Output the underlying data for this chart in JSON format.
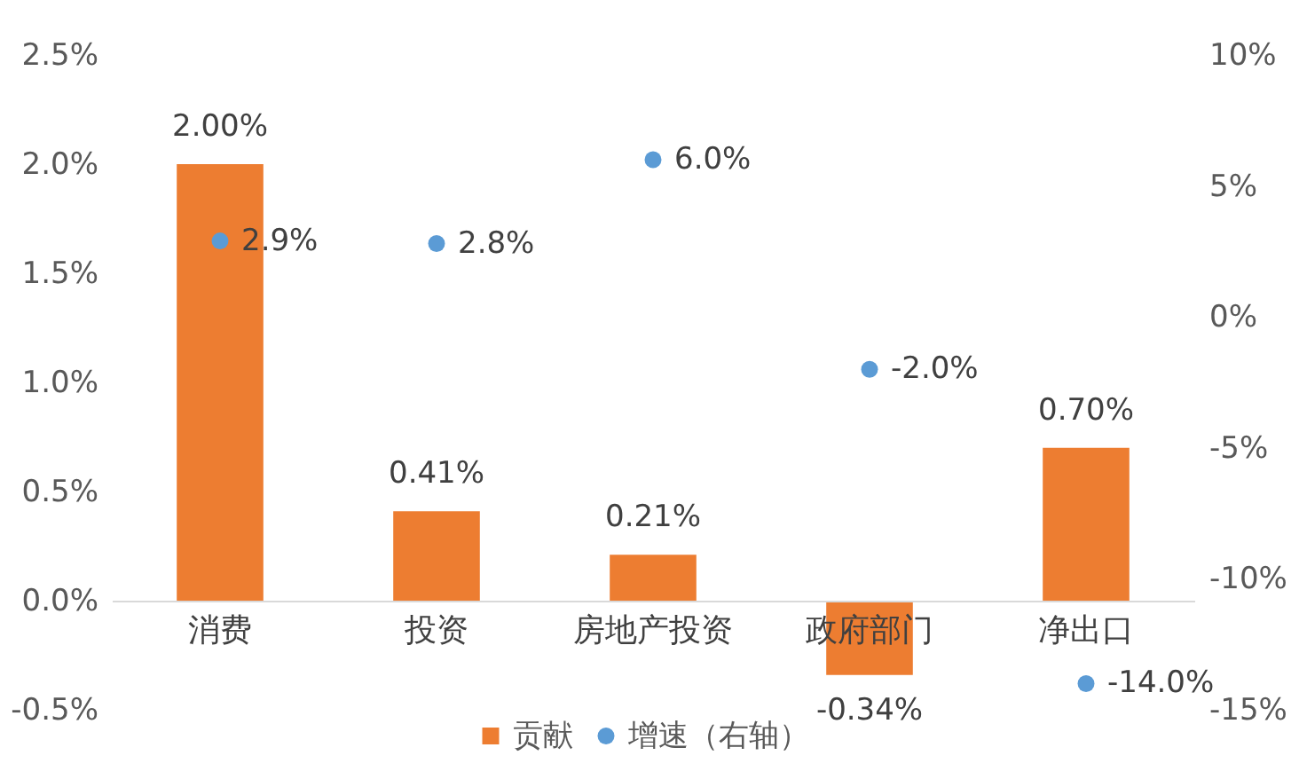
{
  "chart_data": {
    "type": "bar",
    "categories": [
      "消费",
      "投资",
      "房地产投资",
      "政府部门",
      "净出口"
    ],
    "series": [
      {
        "name": "贡献",
        "color": "#ed7d31",
        "values": [
          2.0,
          0.41,
          0.21,
          -0.34,
          0.7
        ],
        "value_labels": [
          "2.00%",
          "0.41%",
          "0.21%",
          "-0.34%",
          "0.70%"
        ]
      },
      {
        "name": "增速（右轴）",
        "type": "scatter",
        "axis": "y2",
        "color": "#5b9bd5",
        "values": [
          2.9,
          2.8,
          6.0,
          -2.0,
          -14.0
        ],
        "value_labels": [
          "2.9%",
          "2.8%",
          "6.0%",
          "-2.0%",
          "-14.0%"
        ]
      }
    ],
    "ylim": [
      -0.5,
      2.5
    ],
    "yticks": [
      {
        "value": -0.5,
        "label": "-0.5%"
      },
      {
        "value": 0,
        "label": "0.0%"
      },
      {
        "value": 0.5,
        "label": "0.5%"
      },
      {
        "value": 1.0,
        "label": "1.0%"
      },
      {
        "value": 1.5,
        "label": "1.5%"
      },
      {
        "value": 2.0,
        "label": "2.0%"
      },
      {
        "value": 2.5,
        "label": "2.5%"
      }
    ],
    "y2lim": [
      -15,
      10
    ],
    "y2ticks": [
      {
        "value": -15,
        "label": "-15%"
      },
      {
        "value": -10,
        "label": "-10%"
      },
      {
        "value": -5,
        "label": "-5%"
      },
      {
        "value": 0,
        "label": "0%"
      },
      {
        "value": 5,
        "label": "5%"
      },
      {
        "value": 10,
        "label": "10%"
      }
    ],
    "grid": false,
    "legend": "bottom",
    "marker": "circle"
  }
}
